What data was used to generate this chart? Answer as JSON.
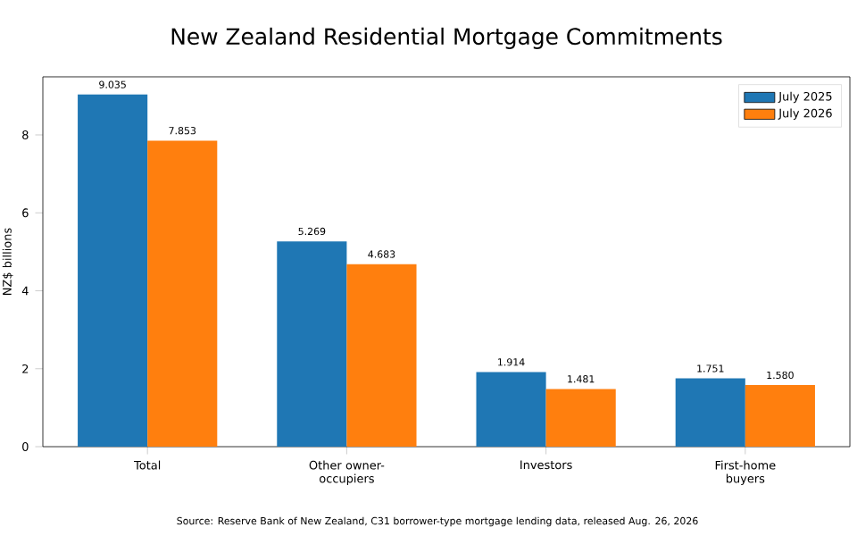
{
  "chart_data": {
    "type": "bar",
    "title": "New Zealand Residential Mortgage Commitments",
    "ylabel": "NZ$ billions",
    "categories": [
      "Total",
      "Other owner-occupiers",
      "Investors",
      "First-home buyers"
    ],
    "series": [
      {
        "name": "July 2025",
        "color": "#1f77b4",
        "values": [
          9.035,
          5.269,
          1.914,
          1.751
        ],
        "value_labels": [
          "9.035",
          "5.269",
          "1.914",
          "1.751"
        ]
      },
      {
        "name": "July 2026",
        "color": "#ff7f0e",
        "values": [
          7.853,
          4.683,
          1.481,
          1.58
        ],
        "value_labels": [
          "7.853",
          "4.683",
          "1.481",
          "1.580"
        ]
      }
    ],
    "ylim": [
      0,
      9.49
    ],
    "yticks": [
      0,
      2,
      4,
      6,
      8
    ],
    "legend": "top right",
    "annotations": [
      "Source: Reserve Bank of New Zealand, C31 borrower-type mortgage lending data, released Aug. 26, 2026"
    ]
  }
}
